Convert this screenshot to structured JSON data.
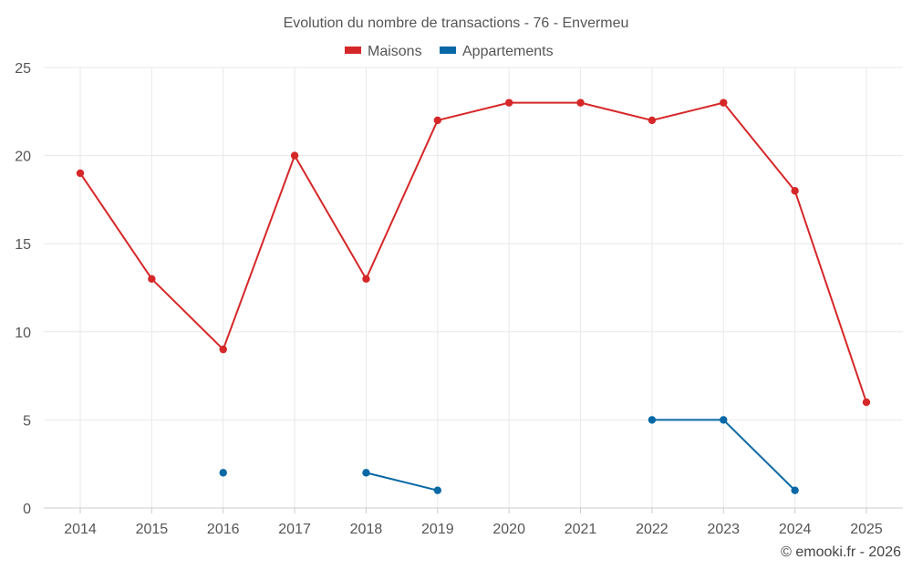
{
  "chart_data": {
    "type": "line",
    "title": "Evolution du nombre de transactions - 76 - Envermeu",
    "categories": [
      "2014",
      "2015",
      "2016",
      "2017",
      "2018",
      "2019",
      "2020",
      "2021",
      "2022",
      "2023",
      "2024",
      "2025"
    ],
    "series": [
      {
        "name": "Maisons",
        "color": "#d62728",
        "values": [
          19,
          13,
          9,
          20,
          13,
          22,
          23,
          23,
          22,
          23,
          18,
          6
        ]
      },
      {
        "name": "Appartements",
        "color": "#0868a5",
        "values": [
          null,
          null,
          2,
          null,
          2,
          1,
          null,
          null,
          5,
          5,
          1,
          null
        ]
      }
    ],
    "yticks": [
      0,
      5,
      10,
      15,
      20,
      25
    ],
    "ylim": [
      0,
      25
    ],
    "xlabel": "",
    "ylabel": "",
    "grid": true,
    "legend_position": "top-center"
  },
  "credit": "© emooki.fr - 2026"
}
